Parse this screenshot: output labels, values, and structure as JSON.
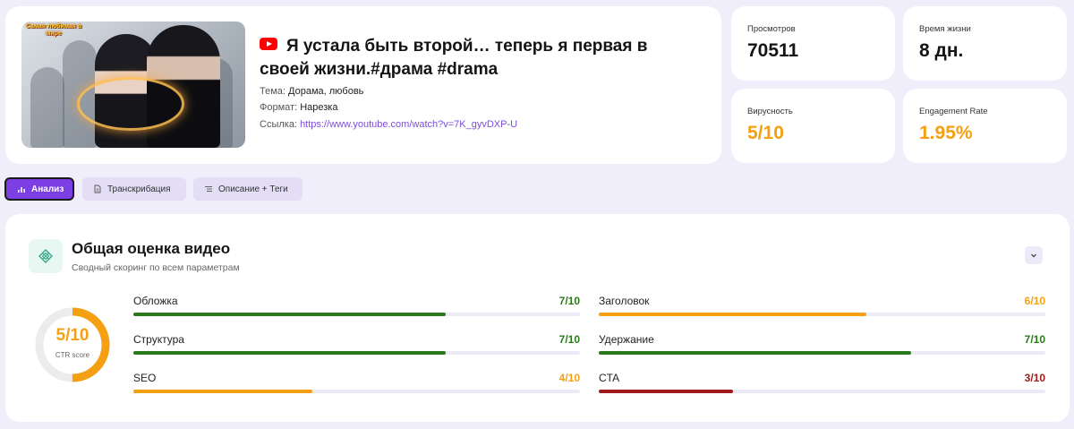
{
  "video": {
    "thumbnail_badge": "Самая любимая в мире",
    "platform_icon": "youtube-icon",
    "title": "Я устала быть второй… теперь я первая в своей жизни.#драма #drama",
    "theme_label": "Тема:",
    "theme_value": "Дорама, любовь",
    "format_label": "Формат:",
    "format_value": "Нарезка",
    "link_label": "Ссылка:",
    "link_value": "https://www.youtube.com/watch?v=7K_gyvDXP-U"
  },
  "stats": [
    {
      "label": "Просмотров",
      "value": "70511"
    },
    {
      "label": "Время жизни",
      "value": "8 дн."
    },
    {
      "label": "Вирусность",
      "value": "5/10"
    },
    {
      "label": "Engagement Rate",
      "value": "1.95%"
    }
  ],
  "tabs": [
    {
      "label": "Анализ",
      "icon": "bar-chart-icon",
      "active": true
    },
    {
      "label": "Транскрибация",
      "icon": "document-icon",
      "active": false
    },
    {
      "label": "Описание + Теги",
      "icon": "list-icon",
      "active": false
    }
  ],
  "score": {
    "title": "Общая оценка видео",
    "subtitle": "Сводный скоринг по всем параметрам",
    "ctr_value": "5/10",
    "ctr_fraction": 0.5,
    "ctr_label": "CTR score",
    "metrics": [
      {
        "label": "Обложка",
        "score": "7/10",
        "fraction": 0.7
      },
      {
        "label": "Заголовок",
        "score": "6/10",
        "fraction": 0.6
      },
      {
        "label": "Структура",
        "score": "7/10",
        "fraction": 0.7
      },
      {
        "label": "Удержание",
        "score": "7/10",
        "fraction": 0.7
      },
      {
        "label": "SEO",
        "score": "4/10",
        "fraction": 0.4
      },
      {
        "label": "CTA",
        "score": "3/10",
        "fraction": 0.3
      }
    ]
  },
  "colors": {
    "accent": "#7b3fe4",
    "good": "#2a7a1b",
    "medium": "#f5a012",
    "bad": "#9e1c1c",
    "youtube": "#ff0000"
  }
}
